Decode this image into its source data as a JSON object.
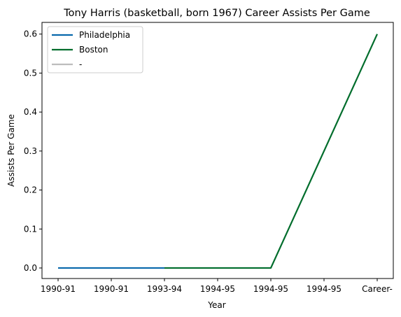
{
  "chart_data": {
    "type": "line",
    "title": "Tony Harris (basketball, born 1967) Career Assists Per Game",
    "xlabel": "Year",
    "ylabel": "Assists Per Game",
    "categories": [
      "1990-91",
      "1990-91",
      "1993-94",
      "1994-95",
      "1994-95",
      "1994-95",
      "Career-"
    ],
    "yticks": [
      "0.0",
      "0.1",
      "0.2",
      "0.3",
      "0.4",
      "0.5",
      "0.6"
    ],
    "ylim": [
      -0.027,
      0.63
    ],
    "grid": false,
    "legend_position": "top-left",
    "series": [
      {
        "name": "Philadelphia",
        "color": "#0868ac",
        "points": [
          [
            0,
            0.0
          ],
          [
            1,
            0.0
          ],
          [
            2,
            0.0
          ]
        ]
      },
      {
        "name": "Boston",
        "color": "#006d2c",
        "points": [
          [
            2,
            0.0
          ],
          [
            3,
            0.0
          ],
          [
            4,
            0.0
          ],
          [
            6,
            0.6
          ]
        ]
      },
      {
        "name": "-",
        "color": "#bdbdbd",
        "points": []
      }
    ]
  }
}
